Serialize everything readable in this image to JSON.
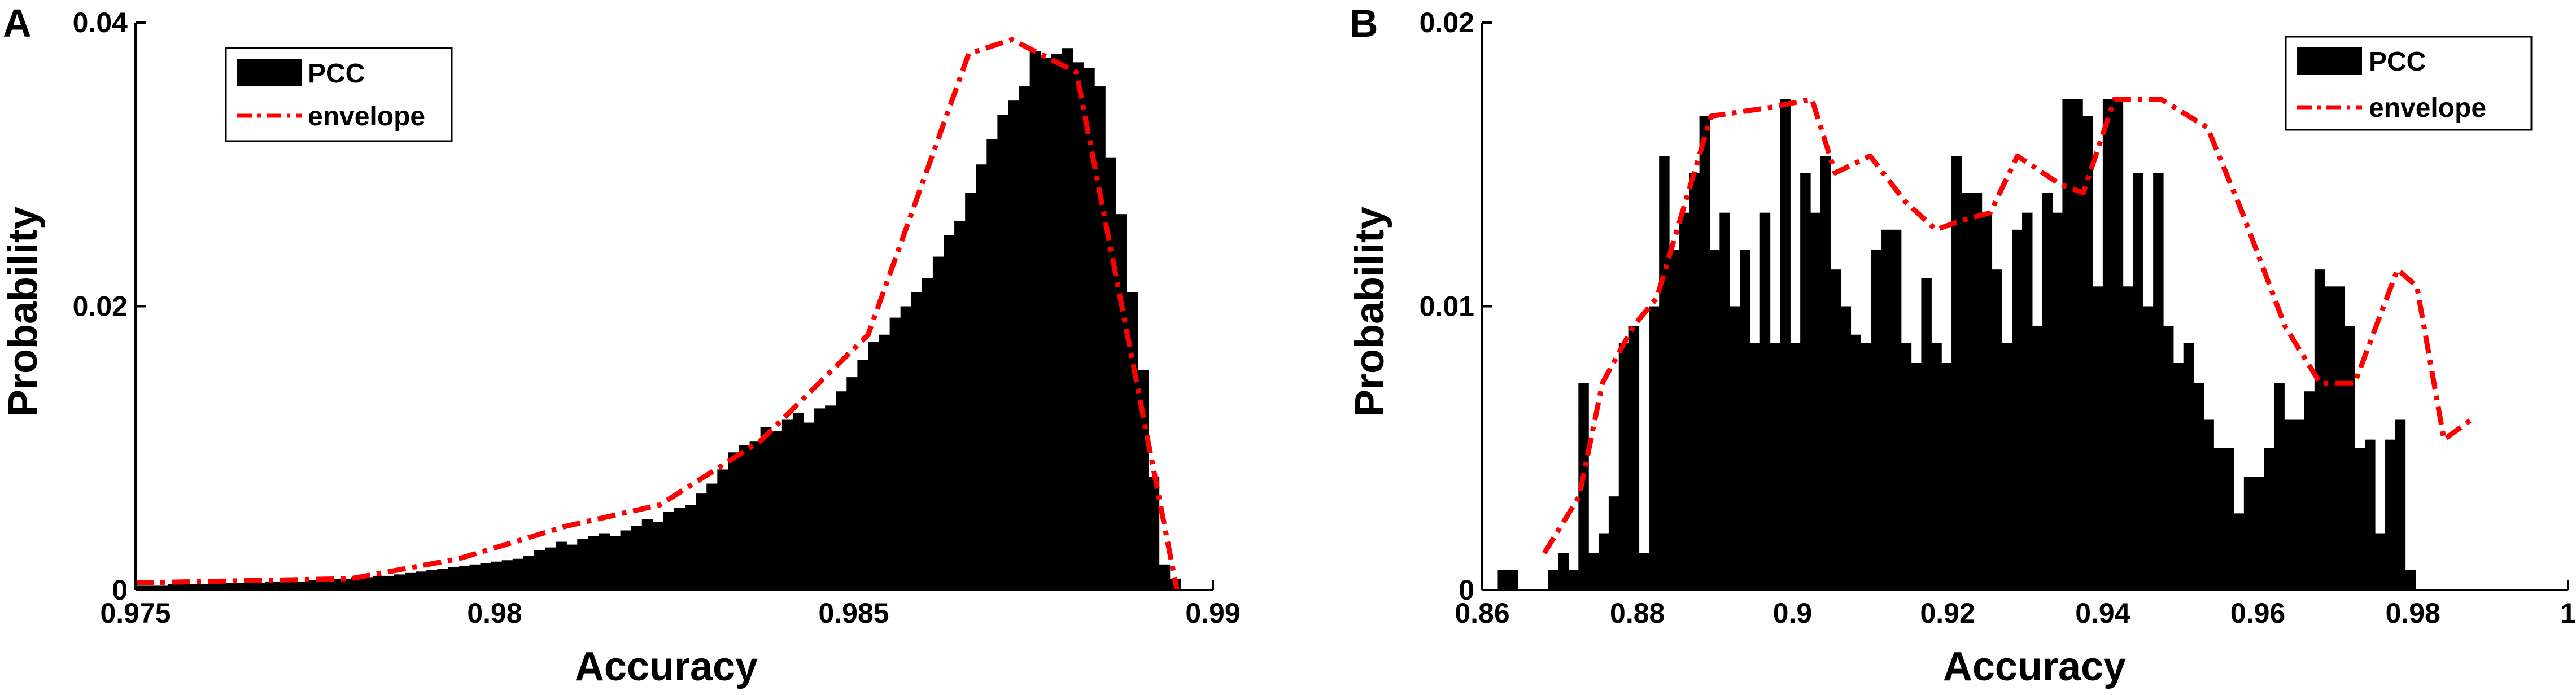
{
  "chart_data": [
    {
      "panel_label": "A",
      "type": "bar",
      "xlabel": "Accuracy",
      "ylabel": "Probability",
      "xlim": [
        0.975,
        0.99
      ],
      "ylim": [
        0,
        0.04
      ],
      "xticks": [
        "0.975",
        "0.98",
        "0.985",
        "0.99"
      ],
      "yticks": [
        "0",
        "0.02",
        "0.04"
      ],
      "legend": {
        "position": "top-left",
        "entries": [
          "PCC",
          "envelope"
        ]
      },
      "colors": {
        "bars": "#000000",
        "envelope": "#ff0000"
      },
      "bin_start": 0.975,
      "bin_width": 0.00015,
      "series": [
        {
          "name": "PCC",
          "values": [
            0.0003,
            0.0003,
            0.0003,
            0.0004,
            0.0004,
            0.0004,
            0.0004,
            0.0005,
            0.0005,
            0.0005,
            0.0005,
            0.0005,
            0.0006,
            0.0006,
            0.0006,
            0.0006,
            0.0007,
            0.0007,
            0.0008,
            0.0008,
            0.0009,
            0.0009,
            0.001,
            0.001,
            0.0011,
            0.0012,
            0.0013,
            0.0014,
            0.0015,
            0.0016,
            0.0017,
            0.0018,
            0.0019,
            0.002,
            0.0021,
            0.0022,
            0.0024,
            0.0028,
            0.003,
            0.0034,
            0.0032,
            0.0036,
            0.0038,
            0.004,
            0.0038,
            0.0042,
            0.0045,
            0.005,
            0.0048,
            0.0055,
            0.0058,
            0.006,
            0.0068,
            0.0075,
            0.0085,
            0.0097,
            0.0102,
            0.0105,
            0.0115,
            0.0112,
            0.012,
            0.0125,
            0.0118,
            0.0128,
            0.013,
            0.014,
            0.015,
            0.0162,
            0.0175,
            0.018,
            0.0192,
            0.02,
            0.021,
            0.022,
            0.0235,
            0.025,
            0.026,
            0.028,
            0.03,
            0.0318,
            0.0335,
            0.0345,
            0.0355,
            0.038,
            0.0375,
            0.0378,
            0.0382,
            0.0372,
            0.0368,
            0.0355,
            0.0305,
            0.0265,
            0.021,
            0.0155,
            0.008,
            0.0018,
            0.0008
          ]
        },
        {
          "name": "envelope",
          "x": [
            0.975,
            0.978,
            0.9795,
            0.981,
            0.9823,
            0.9837,
            0.9852,
            0.9866,
            0.9872,
            0.9881,
            0.9895
          ],
          "values": [
            0.0005,
            0.0008,
            0.0022,
            0.0045,
            0.006,
            0.0105,
            0.018,
            0.0378,
            0.0388,
            0.0365,
            0.0
          ]
        }
      ]
    },
    {
      "panel_label": "B",
      "type": "bar",
      "xlabel": "Accuracy",
      "ylabel": "Probability",
      "xlim": [
        0.86,
        1.0
      ],
      "ylim": [
        0,
        0.02
      ],
      "xticks": [
        "0.86",
        "0.88",
        "0.9",
        "0.92",
        "0.94",
        "0.96",
        "0.98",
        "1"
      ],
      "yticks": [
        "0",
        "0.01",
        "0.02"
      ],
      "legend": {
        "position": "top-right",
        "entries": [
          "PCC",
          "envelope"
        ]
      },
      "colors": {
        "bars": "#000000",
        "envelope": "#ff0000"
      },
      "bin_start": 0.862,
      "bin_width": 0.0013,
      "series": [
        {
          "name": "PCC",
          "values": [
            0.0007,
            0.0007,
            0,
            0,
            0,
            0.0007,
            0.0013,
            0.0007,
            0.0073,
            0.0013,
            0.002,
            0.0033,
            0.0087,
            0.0093,
            0.0013,
            0.01,
            0.0153,
            0.012,
            0.0133,
            0.0147,
            0.0167,
            0.012,
            0.0133,
            0.01,
            0.012,
            0.0087,
            0.0133,
            0.0087,
            0.0173,
            0.0087,
            0.0147,
            0.0133,
            0.0153,
            0.0113,
            0.01,
            0.009,
            0.0087,
            0.012,
            0.0127,
            0.0127,
            0.0087,
            0.008,
            0.011,
            0.0087,
            0.008,
            0.0153,
            0.014,
            0.014,
            0.0133,
            0.0113,
            0.0087,
            0.0127,
            0.0133,
            0.0093,
            0.014,
            0.0133,
            0.0173,
            0.0173,
            0.0167,
            0.0107,
            0.0173,
            0.0173,
            0.0107,
            0.0147,
            0.01,
            0.0147,
            0.0093,
            0.008,
            0.0087,
            0.0073,
            0.006,
            0.005,
            0.005,
            0.0027,
            0.004,
            0.004,
            0.005,
            0.0073,
            0.006,
            0.006,
            0.007,
            0.0113,
            0.0107,
            0.0107,
            0.0093,
            0.005,
            0.0053,
            0.002,
            0.0053,
            0.006,
            0.0007
          ]
        },
        {
          "name": "envelope",
          "x": [
            0.868,
            0.8725,
            0.8755,
            0.8795,
            0.8825,
            0.8895,
            0.897,
            0.9025,
            0.9055,
            0.91,
            0.9145,
            0.9185,
            0.9215,
            0.9255,
            0.929,
            0.9345,
            0.9375,
            0.9415,
            0.9475,
            0.9535,
            0.958,
            0.9635,
            0.968,
            0.9725,
            0.978,
            0.9805,
            0.984,
            0.9875
          ],
          "values": [
            0.0013,
            0.0033,
            0.0073,
            0.0093,
            0.0103,
            0.0167,
            0.017,
            0.0173,
            0.0147,
            0.0153,
            0.0137,
            0.0127,
            0.013,
            0.0133,
            0.0153,
            0.0143,
            0.014,
            0.0173,
            0.0173,
            0.0163,
            0.0133,
            0.0093,
            0.0073,
            0.0073,
            0.0113,
            0.0107,
            0.0053,
            0.006
          ]
        }
      ]
    }
  ]
}
